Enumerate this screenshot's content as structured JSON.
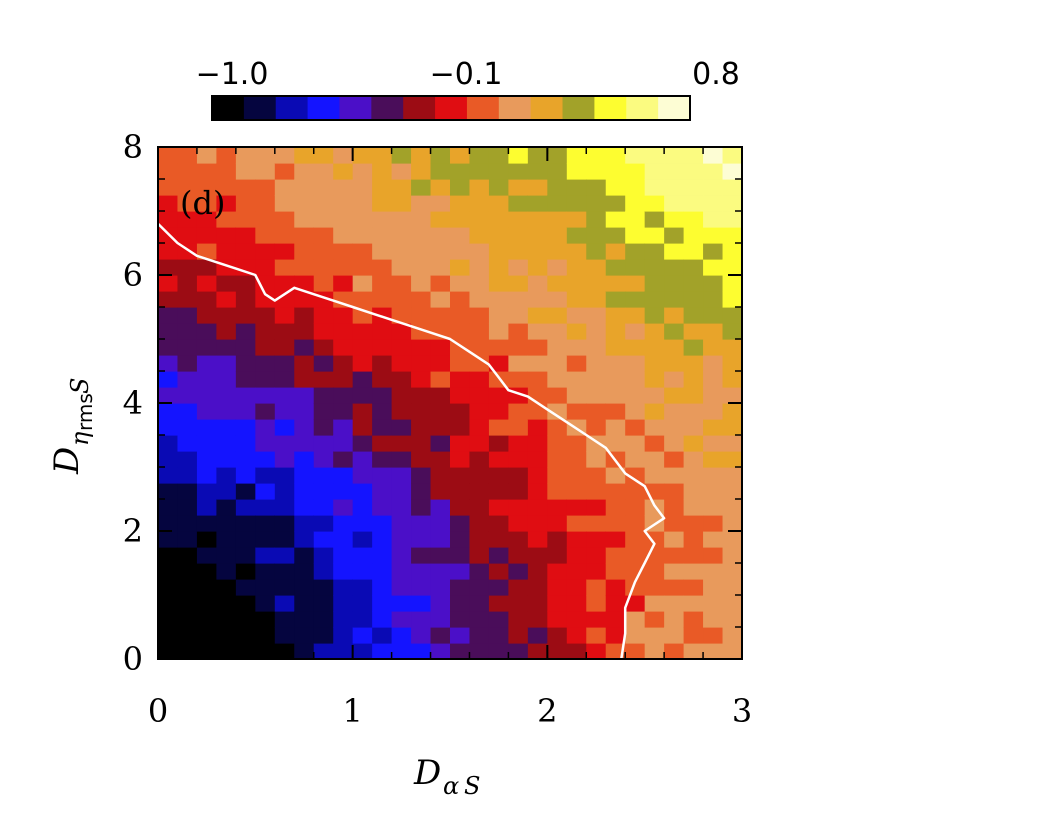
{
  "chart_data": {
    "type": "heatmap",
    "panel_label": "(d)",
    "xlabel": {
      "main": "D",
      "sub": "α",
      "tail": "S"
    },
    "ylabel": {
      "main": "D",
      "sub": "η",
      "subsub": "rms",
      "tail": "S"
    },
    "xlim": [
      0,
      3
    ],
    "ylim": [
      0,
      8
    ],
    "x_ticks": [
      0,
      1,
      2,
      3
    ],
    "x_tick_labels": [
      "0",
      "1",
      "2",
      "3"
    ],
    "y_ticks": [
      0,
      2,
      4,
      6,
      8
    ],
    "y_tick_labels": [
      "0",
      "2",
      "4",
      "6",
      "8"
    ],
    "grid": false,
    "field_description_ranges": {
      "min": -1.0,
      "max": 0.8
    },
    "colorbar": {
      "labels": [
        "−1.0",
        "−0.1",
        "0.8"
      ],
      "label_values": [
        -1.0,
        -0.1,
        0.8
      ],
      "colors": [
        "#000000",
        "#05053f",
        "#0a0ab4",
        "#1414ff",
        "#4b0fc8",
        "#4a0d5a",
        "#9c0c14",
        "#e00d12",
        "#e95a26",
        "#e89a5c",
        "#e8a42a",
        "#a2a229",
        "#fdfd30",
        "#fbfb80",
        "#fdfdd4"
      ]
    },
    "contour": {
      "level_note": "white contour line",
      "color": "#ffffff",
      "line": [
        [
          0,
          6.8
        ],
        [
          0.1,
          6.5
        ],
        [
          0.2,
          6.3
        ],
        [
          0.3,
          6.2
        ],
        [
          0.4,
          6.1
        ],
        [
          0.5,
          6.0
        ],
        [
          0.55,
          5.7
        ],
        [
          0.6,
          5.6
        ],
        [
          0.7,
          5.8
        ],
        [
          0.8,
          5.7
        ],
        [
          0.9,
          5.6
        ],
        [
          1.0,
          5.5
        ],
        [
          1.1,
          5.4
        ],
        [
          1.2,
          5.3
        ],
        [
          1.3,
          5.2
        ],
        [
          1.4,
          5.1
        ],
        [
          1.5,
          5.0
        ],
        [
          1.6,
          4.8
        ],
        [
          1.7,
          4.6
        ],
        [
          1.75,
          4.4
        ],
        [
          1.8,
          4.2
        ],
        [
          1.9,
          4.1
        ],
        [
          2.0,
          3.9
        ],
        [
          2.1,
          3.7
        ],
        [
          2.2,
          3.5
        ],
        [
          2.3,
          3.3
        ],
        [
          2.35,
          3.1
        ],
        [
          2.4,
          2.9
        ],
        [
          2.5,
          2.7
        ],
        [
          2.55,
          2.4
        ],
        [
          2.6,
          2.2
        ],
        [
          2.5,
          2.0
        ],
        [
          2.55,
          1.8
        ],
        [
          2.5,
          1.5
        ],
        [
          2.45,
          1.2
        ],
        [
          2.4,
          0.8
        ],
        [
          2.4,
          0.4
        ],
        [
          2.38,
          0
        ]
      ]
    },
    "field_points": [
      {
        "x": 0.0,
        "y": 0.0,
        "v": -1.0
      },
      {
        "x": 0.5,
        "y": 0.0,
        "v": -0.95
      },
      {
        "x": 1.0,
        "y": 0.0,
        "v": -0.7
      },
      {
        "x": 1.5,
        "y": 0.0,
        "v": -0.45
      },
      {
        "x": 2.0,
        "y": 0.0,
        "v": -0.2
      },
      {
        "x": 2.5,
        "y": 0.0,
        "v": 0.05
      },
      {
        "x": 3.0,
        "y": 0.0,
        "v": 0.15
      },
      {
        "x": 0.0,
        "y": 2.0,
        "v": -0.9
      },
      {
        "x": 0.5,
        "y": 2.0,
        "v": -0.8
      },
      {
        "x": 1.0,
        "y": 2.0,
        "v": -0.6
      },
      {
        "x": 1.5,
        "y": 2.0,
        "v": -0.35
      },
      {
        "x": 2.0,
        "y": 2.0,
        "v": -0.15
      },
      {
        "x": 2.5,
        "y": 2.0,
        "v": 0.05
      },
      {
        "x": 3.0,
        "y": 2.0,
        "v": 0.15
      },
      {
        "x": 0.0,
        "y": 4.0,
        "v": -0.55
      },
      {
        "x": 0.5,
        "y": 4.0,
        "v": -0.45
      },
      {
        "x": 1.0,
        "y": 4.0,
        "v": -0.3
      },
      {
        "x": 1.5,
        "y": 4.0,
        "v": -0.15
      },
      {
        "x": 2.0,
        "y": 4.0,
        "v": 0.05
      },
      {
        "x": 2.5,
        "y": 4.0,
        "v": 0.15
      },
      {
        "x": 3.0,
        "y": 4.0,
        "v": 0.2
      },
      {
        "x": 0.0,
        "y": 6.0,
        "v": -0.2
      },
      {
        "x": 0.5,
        "y": 6.0,
        "v": -0.1
      },
      {
        "x": 1.0,
        "y": 6.0,
        "v": 0.05
      },
      {
        "x": 1.5,
        "y": 6.0,
        "v": 0.15
      },
      {
        "x": 2.0,
        "y": 6.0,
        "v": 0.2
      },
      {
        "x": 2.5,
        "y": 6.0,
        "v": 0.35
      },
      {
        "x": 3.0,
        "y": 6.0,
        "v": 0.45
      },
      {
        "x": 0.0,
        "y": 8.0,
        "v": 0.05
      },
      {
        "x": 0.5,
        "y": 8.0,
        "v": 0.15
      },
      {
        "x": 1.0,
        "y": 8.0,
        "v": 0.25
      },
      {
        "x": 1.5,
        "y": 8.0,
        "v": 0.35
      },
      {
        "x": 2.0,
        "y": 8.0,
        "v": 0.45
      },
      {
        "x": 2.5,
        "y": 8.0,
        "v": 0.65
      },
      {
        "x": 3.0,
        "y": 8.0,
        "v": 0.7
      }
    ]
  }
}
